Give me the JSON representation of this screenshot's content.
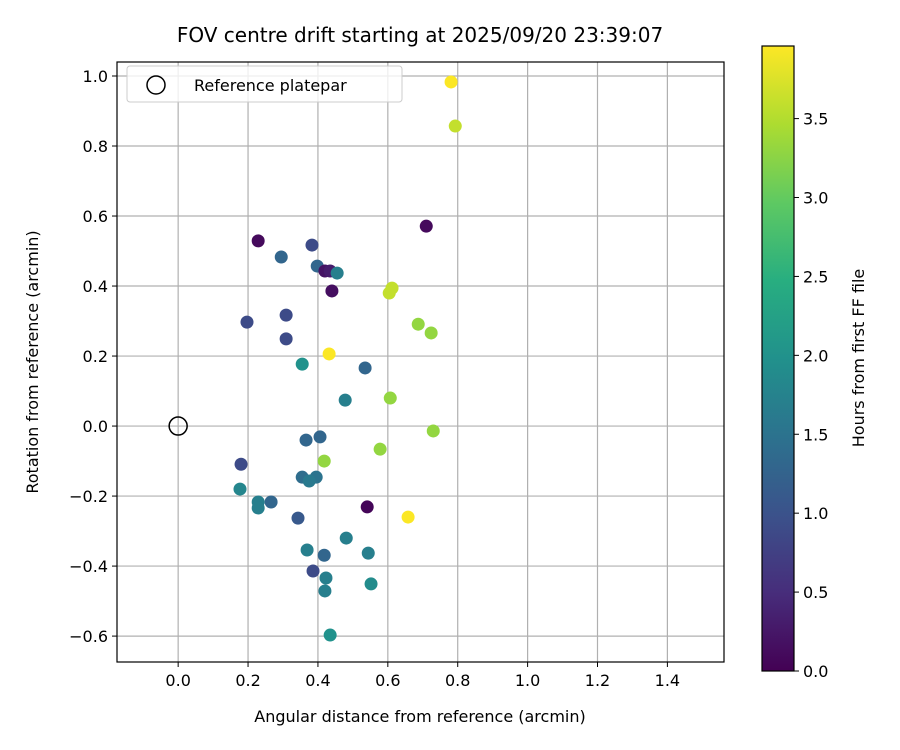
{
  "chart_data": {
    "type": "scatter",
    "title": "FOV centre drift starting at 2025/09/20 23:39:07",
    "xlabel": "Angular distance from reference (arcmin)",
    "ylabel": "Rotation from reference (arcmin)",
    "xlim": [
      -0.175,
      1.562
    ],
    "ylim": [
      -0.674,
      1.04
    ],
    "xticks": [
      "0.0",
      "0.2",
      "0.4",
      "0.6",
      "0.8",
      "1.0",
      "1.2",
      "1.4"
    ],
    "yticks": [
      "−0.6",
      "−0.4",
      "−0.2",
      "0.0",
      "0.2",
      "0.4",
      "0.6",
      "0.8",
      "1.0"
    ],
    "grid": true,
    "legend": {
      "placement": "top-left",
      "entries": [
        "Reference platepar"
      ]
    },
    "reference_point": {
      "x": 0.0,
      "y": 0.0
    },
    "colorbar": {
      "label": "Hours from first FF file",
      "colormap": "viridis",
      "range": [
        0.0,
        3.96
      ],
      "ticks": [
        "0.0",
        "0.5",
        "1.0",
        "1.5",
        "2.0",
        "2.5",
        "3.0",
        "3.5"
      ]
    },
    "points": [
      {
        "x": 0.781,
        "y": 0.983,
        "h": 3.95
      },
      {
        "x": 0.793,
        "y": 0.857,
        "h": 3.6
      },
      {
        "x": 0.229,
        "y": 0.529,
        "h": 0.1
      },
      {
        "x": 0.71,
        "y": 0.571,
        "h": 0.1
      },
      {
        "x": 0.295,
        "y": 0.483,
        "h": 1.3
      },
      {
        "x": 0.383,
        "y": 0.517,
        "h": 0.9
      },
      {
        "x": 0.398,
        "y": 0.457,
        "h": 1.3
      },
      {
        "x": 0.42,
        "y": 0.443,
        "h": 0.2
      },
      {
        "x": 0.435,
        "y": 0.443,
        "h": 0.3
      },
      {
        "x": 0.455,
        "y": 0.437,
        "h": 1.7
      },
      {
        "x": 0.44,
        "y": 0.386,
        "h": 0.15
      },
      {
        "x": 0.612,
        "y": 0.394,
        "h": 3.6
      },
      {
        "x": 0.604,
        "y": 0.38,
        "h": 3.6
      },
      {
        "x": 0.687,
        "y": 0.291,
        "h": 3.3
      },
      {
        "x": 0.724,
        "y": 0.266,
        "h": 3.3
      },
      {
        "x": 0.197,
        "y": 0.297,
        "h": 0.9
      },
      {
        "x": 0.309,
        "y": 0.317,
        "h": 0.9
      },
      {
        "x": 0.309,
        "y": 0.249,
        "h": 0.9
      },
      {
        "x": 0.432,
        "y": 0.206,
        "h": 3.95
      },
      {
        "x": 0.355,
        "y": 0.177,
        "h": 2.0
      },
      {
        "x": 0.535,
        "y": 0.166,
        "h": 1.3
      },
      {
        "x": 0.478,
        "y": 0.074,
        "h": 1.7
      },
      {
        "x": 0.607,
        "y": 0.08,
        "h": 3.3
      },
      {
        "x": 0.73,
        "y": -0.014,
        "h": 3.3
      },
      {
        "x": 0.578,
        "y": -0.066,
        "h": 3.3
      },
      {
        "x": 0.366,
        "y": -0.04,
        "h": 1.3
      },
      {
        "x": 0.406,
        "y": -0.031,
        "h": 1.3
      },
      {
        "x": 0.418,
        "y": -0.1,
        "h": 3.3
      },
      {
        "x": 0.18,
        "y": -0.109,
        "h": 0.9
      },
      {
        "x": 0.355,
        "y": -0.146,
        "h": 1.4
      },
      {
        "x": 0.395,
        "y": -0.146,
        "h": 1.5
      },
      {
        "x": 0.375,
        "y": -0.157,
        "h": 1.6
      },
      {
        "x": 0.177,
        "y": -0.18,
        "h": 1.8
      },
      {
        "x": 0.229,
        "y": -0.217,
        "h": 1.7
      },
      {
        "x": 0.229,
        "y": -0.234,
        "h": 1.7
      },
      {
        "x": 0.266,
        "y": -0.217,
        "h": 1.3
      },
      {
        "x": 0.541,
        "y": -0.231,
        "h": 0.05
      },
      {
        "x": 0.658,
        "y": -0.26,
        "h": 3.95
      },
      {
        "x": 0.343,
        "y": -0.263,
        "h": 1.1
      },
      {
        "x": 0.481,
        "y": -0.32,
        "h": 1.7
      },
      {
        "x": 0.369,
        "y": -0.354,
        "h": 1.7
      },
      {
        "x": 0.418,
        "y": -0.369,
        "h": 1.3
      },
      {
        "x": 0.544,
        "y": -0.363,
        "h": 1.7
      },
      {
        "x": 0.386,
        "y": -0.414,
        "h": 0.9
      },
      {
        "x": 0.423,
        "y": -0.434,
        "h": 1.7
      },
      {
        "x": 0.42,
        "y": -0.471,
        "h": 1.7
      },
      {
        "x": 0.552,
        "y": -0.451,
        "h": 1.9
      },
      {
        "x": 0.435,
        "y": -0.597,
        "h": 2.0
      }
    ]
  }
}
